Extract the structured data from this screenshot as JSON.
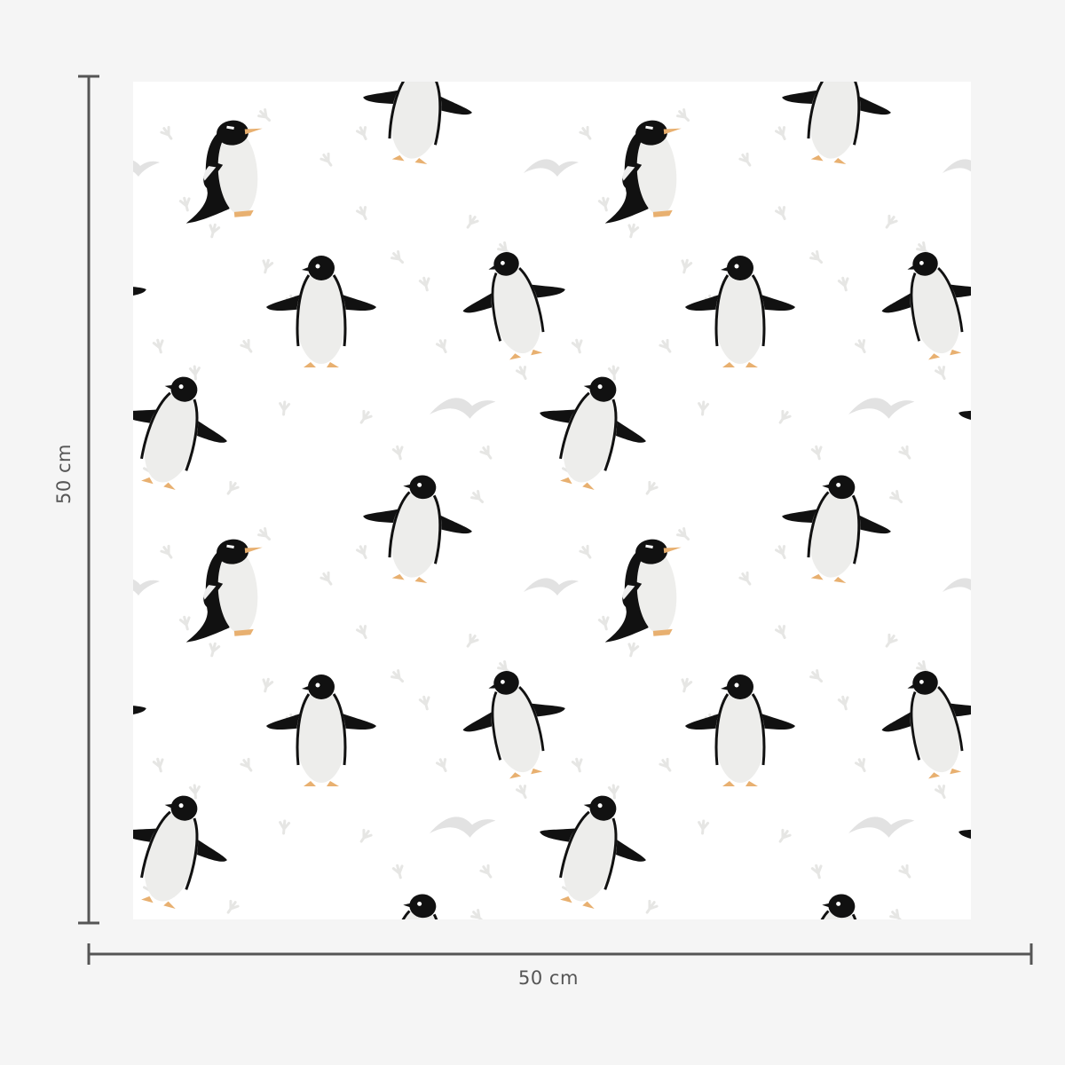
{
  "dimensions": {
    "width_label": "50 cm",
    "height_label": "50 cm"
  },
  "colors": {
    "background": "#f5f5f5",
    "pattern_background": "#ffffff",
    "dimension_line": "#555555",
    "penguin_black": "#111111",
    "penguin_belly": "#eeeeec",
    "feet": "#e8b070",
    "footprints": "#e6e6e4"
  },
  "pattern": {
    "motifs": [
      "gentoo-penguin",
      "adelie-penguin-flying",
      "adelie-penguin-standing",
      "adelie-penguin-walking",
      "chinstrap-penguin-leaning",
      "seagull-silhouette",
      "footprints"
    ]
  }
}
